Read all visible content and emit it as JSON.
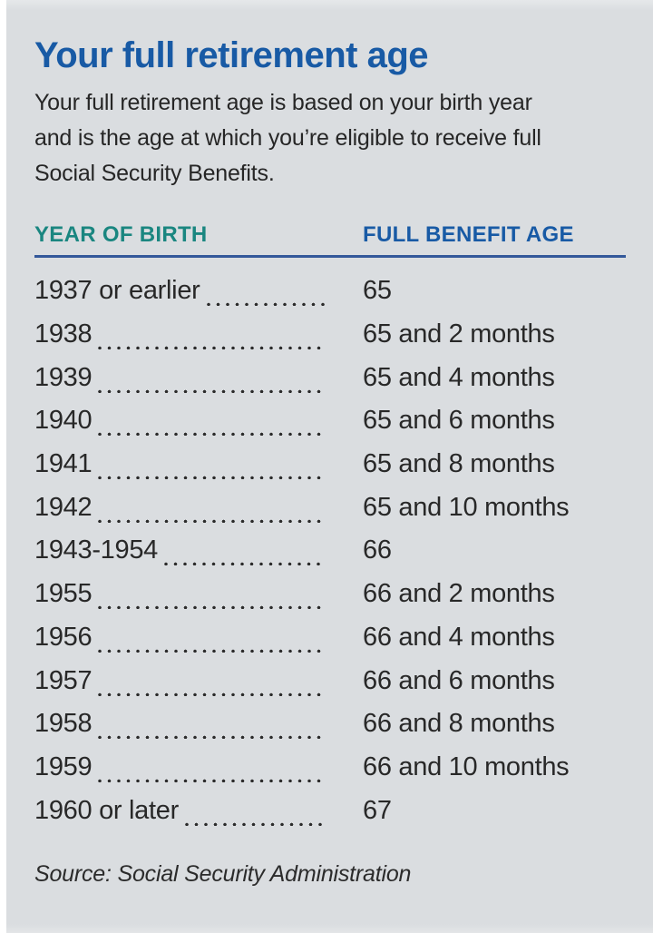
{
  "panel": {
    "title": "Your full retirement age",
    "subtitle_lines": [
      "Your full retirement age is based on your birth year",
      "and is the age at which you’re eligible to receive full",
      "Social Security Benefits."
    ],
    "table": {
      "col1_header": "YEAR OF BIRTH",
      "col2_header": "FULL BENEFIT AGE",
      "rows": [
        {
          "year": "1937 or earlier",
          "age": "65"
        },
        {
          "year": "1938",
          "age": "65 and 2 months"
        },
        {
          "year": "1939",
          "age": "65 and 4 months"
        },
        {
          "year": "1940",
          "age": "65 and 6 months"
        },
        {
          "year": "1941",
          "age": "65 and 8 months"
        },
        {
          "year": "1942",
          "age": "65 and 10 months"
        },
        {
          "year": "1943-1954",
          "age": "66"
        },
        {
          "year": "1955",
          "age": "66 and 2 months"
        },
        {
          "year": "1956",
          "age": "66 and 4 months"
        },
        {
          "year": "1957",
          "age": "66 and 6 months"
        },
        {
          "year": "1958",
          "age": "66 and 8 months"
        },
        {
          "year": "1959",
          "age": "66 and 10 months"
        },
        {
          "year": "1960 or later",
          "age": "67"
        }
      ]
    },
    "source": "Source: Social Security Administration"
  },
  "colors": {
    "panel_background": "#dadde0",
    "title_blue": "#185aa5",
    "header_teal": "#1a8680",
    "header_blue": "#185aa5",
    "divider_navy": "#33589a",
    "body_text": "#282828"
  },
  "chart_data": {
    "type": "table",
    "title": "Your full retirement age",
    "subtitle": "Your full retirement age is based on your birth year and is the age at which you’re eligible to receive full Social Security Benefits.",
    "columns": [
      "YEAR OF BIRTH",
      "FULL BENEFIT AGE"
    ],
    "rows": [
      [
        "1937 or earlier",
        "65"
      ],
      [
        "1938",
        "65 and 2 months"
      ],
      [
        "1939",
        "65 and 4 months"
      ],
      [
        "1940",
        "65 and 6 months"
      ],
      [
        "1941",
        "65 and 8 months"
      ],
      [
        "1942",
        "65 and 10 months"
      ],
      [
        "1943-1954",
        "66"
      ],
      [
        "1955",
        "66 and 2 months"
      ],
      [
        "1956",
        "66 and 4 months"
      ],
      [
        "1957",
        "66 and 6 months"
      ],
      [
        "1958",
        "66 and 8 months"
      ],
      [
        "1959",
        "66 and 10 months"
      ],
      [
        "1960 or later",
        "67"
      ]
    ],
    "source": "Source: Social Security Administration",
    "legend_position": "none",
    "grid": false
  }
}
